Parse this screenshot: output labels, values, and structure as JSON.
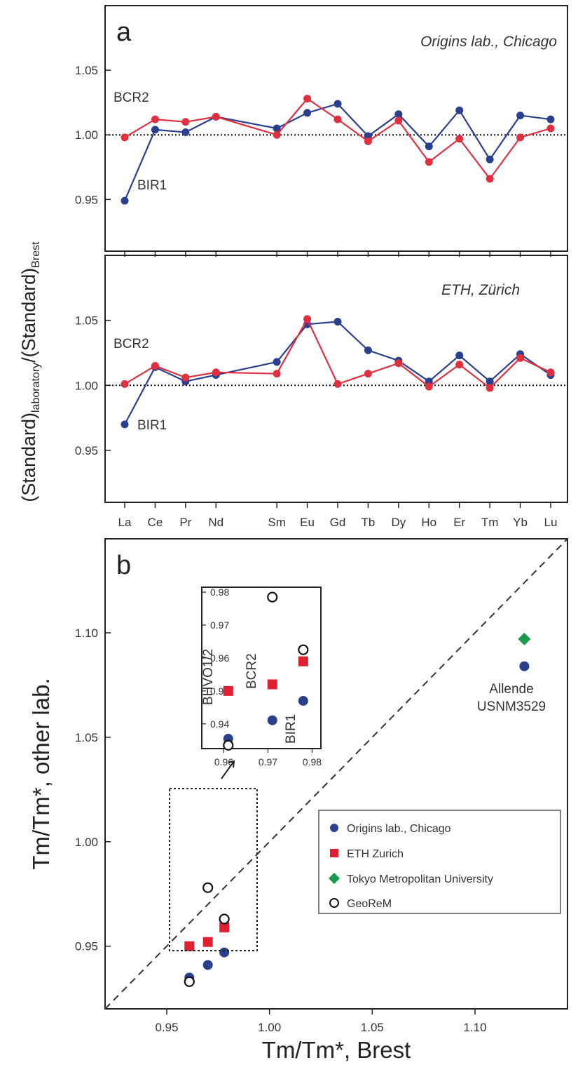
{
  "figure": {
    "y_label_a_main": "(Standard)",
    "y_label_a_sub1": "laboratory",
    "y_label_a_mid": "/(Standard)",
    "y_label_a_sub2": "Brest",
    "panel_a_label": "a",
    "panel_b_label": "b"
  },
  "chart_data": [
    {
      "type": "line",
      "panel": "a",
      "lab": "Origins lab., Chicago",
      "categories": [
        "La",
        "Ce",
        "Pr",
        "Nd",
        "Sm",
        "Eu",
        "Gd",
        "Tb",
        "Dy",
        "Ho",
        "Er",
        "Tm",
        "Yb",
        "Lu"
      ],
      "x_positions": [
        1,
        2,
        3,
        4,
        6,
        7,
        8,
        9,
        10,
        11,
        12,
        13,
        14,
        15
      ],
      "ylim": [
        0.91,
        1.1
      ],
      "yticks": [
        "0.95",
        "1.00",
        "1.05"
      ],
      "reference_line": 1.0,
      "series": [
        {
          "name": "BIR1",
          "color": "#2b3f8f",
          "values": [
            0.949,
            1.004,
            1.002,
            1.014,
            1.005,
            1.017,
            1.024,
            0.999,
            1.016,
            0.991,
            1.019,
            0.981,
            1.015,
            1.012
          ]
        },
        {
          "name": "BCR2",
          "color": "#e03040",
          "values": [
            0.998,
            1.012,
            1.01,
            1.014,
            1.0,
            1.028,
            1.012,
            0.995,
            1.011,
            0.979,
            0.997,
            0.966,
            0.998,
            1.005
          ]
        }
      ]
    },
    {
      "type": "line",
      "panel": "a2",
      "lab": "ETH, Zürich",
      "categories": [
        "La",
        "Ce",
        "Pr",
        "Nd",
        "Sm",
        "Eu",
        "Gd",
        "Tb",
        "Dy",
        "Ho",
        "Er",
        "Tm",
        "Yb",
        "Lu"
      ],
      "x_positions": [
        1,
        2,
        3,
        4,
        6,
        7,
        8,
        9,
        10,
        11,
        12,
        13,
        14,
        15
      ],
      "ylim": [
        0.91,
        1.1
      ],
      "yticks": [
        "0.95",
        "1.00",
        "1.05"
      ],
      "reference_line": 1.0,
      "series": [
        {
          "name": "BIR1",
          "color": "#2b3f8f",
          "values": [
            0.97,
            1.014,
            1.003,
            1.008,
            1.018,
            1.047,
            1.049,
            1.027,
            1.019,
            1.003,
            1.023,
            1.003,
            1.024,
            1.008
          ]
        },
        {
          "name": "BCR2",
          "color": "#e03040",
          "values": [
            1.001,
            1.015,
            1.006,
            1.01,
            1.009,
            1.051,
            1.001,
            1.009,
            1.017,
            0.999,
            1.016,
            0.998,
            1.021,
            1.01
          ]
        }
      ]
    },
    {
      "type": "scatter",
      "panel": "b",
      "xlabel": "Tm/Tm*, Brest",
      "ylabel": "Tm/Tm*, other lab.",
      "xlim": [
        0.92,
        1.145
      ],
      "ylim": [
        0.92,
        1.145
      ],
      "xticks": [
        "0.95",
        "1.00",
        "1.05",
        "1.10"
      ],
      "yticks": [
        "0.95",
        "1.00",
        "1.05",
        "1.10"
      ],
      "identity_line": true,
      "series": [
        {
          "name": "Origins lab., Chicago",
          "marker": "circle",
          "color": "#2b3f8f",
          "points": [
            [
              0.961,
              0.935
            ],
            [
              0.97,
              0.941
            ],
            [
              0.978,
              0.947
            ],
            [
              1.124,
              1.084
            ]
          ]
        },
        {
          "name": "ETH Zurich",
          "marker": "square",
          "color": "#e02030",
          "points": [
            [
              0.961,
              0.95
            ],
            [
              0.97,
              0.952
            ],
            [
              0.978,
              0.959
            ]
          ]
        },
        {
          "name": "Tokyo Metropolitan University",
          "marker": "diamond",
          "color": "#1a9a4a",
          "points": [
            [
              1.124,
              1.097
            ]
          ]
        },
        {
          "name": "GeoReM",
          "marker": "open-circle",
          "color": "#111111",
          "points": [
            [
              0.961,
              0.933
            ],
            [
              0.97,
              0.978
            ],
            [
              0.978,
              0.963
            ]
          ]
        }
      ],
      "annotations": [
        "Allende",
        "USNM3529"
      ],
      "inset": {
        "xlim": [
          0.955,
          0.982
        ],
        "ylim": [
          0.9325,
          0.9815
        ],
        "xticks": [
          "0.96",
          "0.97",
          "0.98"
        ],
        "yticks": [
          "0.94",
          "0.95",
          "0.96",
          "0.97",
          "0.98"
        ],
        "labels": [
          "BHVO1/2",
          "BCR2",
          "BIR1"
        ],
        "series": [
          {
            "name": "Origins lab., Chicago",
            "marker": "circle",
            "color": "#2b3f8f",
            "points": [
              [
                0.961,
                0.9355
              ],
              [
                0.971,
                0.9411
              ],
              [
                0.978,
                0.947
              ]
            ]
          },
          {
            "name": "ETH Zurich",
            "marker": "square",
            "color": "#e02030",
            "points": [
              [
                0.961,
                0.95
              ],
              [
                0.971,
                0.952
              ],
              [
                0.978,
                0.959
              ]
            ]
          },
          {
            "name": "GeoReM",
            "marker": "open-circle",
            "color": "#111111",
            "points": [
              [
                0.961,
                0.9335
              ],
              [
                0.971,
                0.9785
              ],
              [
                0.978,
                0.9625
              ]
            ]
          }
        ]
      }
    }
  ]
}
